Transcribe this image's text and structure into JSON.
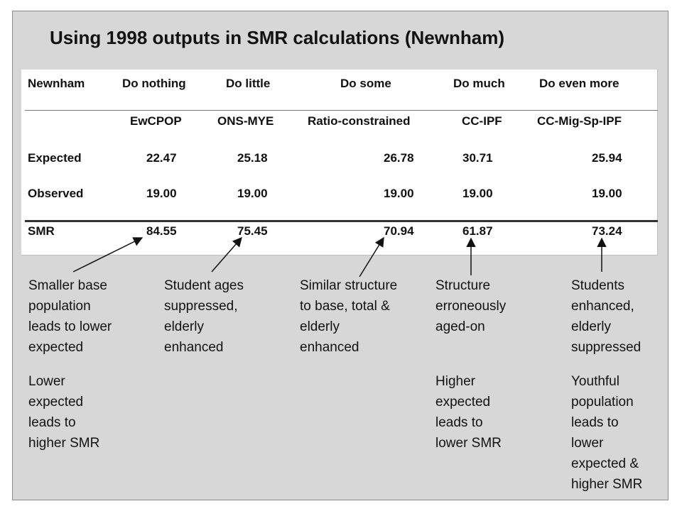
{
  "title": "Using 1998 outputs in SMR calculations (Newnham)",
  "table": {
    "header": [
      "Newnham",
      "Do nothing",
      "Do little",
      "Do some",
      "Do much",
      "Do even more"
    ],
    "subheader": [
      "",
      "EwCPOP",
      "ONS-MYE",
      "Ratio-constrained",
      "CC-IPF",
      "CC-Mig-Sp-IPF"
    ],
    "rows": [
      {
        "label": "Expected",
        "values": [
          "22.47",
          "25.18",
          "26.78",
          "30.71",
          "25.94"
        ]
      },
      {
        "label": "Observed",
        "values": [
          "19.00",
          "19.00",
          "19.00",
          "19.00",
          "19.00"
        ]
      },
      {
        "label": "SMR",
        "values": [
          "84.55",
          "75.45",
          "70.94",
          "61.87",
          "73.24"
        ]
      }
    ]
  },
  "notes": [
    "Smaller base\npopulation\nleads to lower\nexpected",
    "Student ages\nsuppressed,\nelderly\nenhanced",
    "Similar structure\nto base, total &\nelderly\nenhanced",
    "Structure\nerroneously\naged-on",
    "Students\nenhanced,\nelderly\nsuppressed"
  ],
  "explanations": [
    "Lower\nexpected\nleads to\nhigher SMR",
    "Higher\nexpected\nleads to\nlower SMR",
    "Youthful\npopulation\nleads to\nlower\nexpected &\nhigher SMR"
  ]
}
